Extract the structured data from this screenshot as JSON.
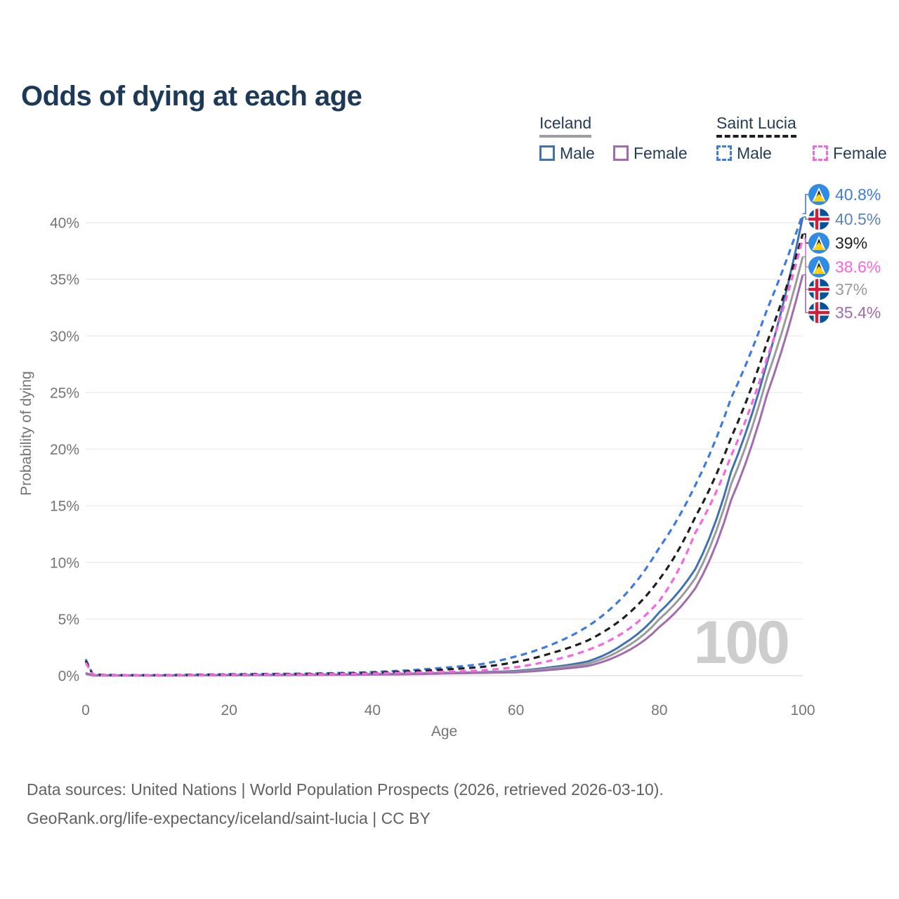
{
  "title": "Odds of dying at each age",
  "watermark": "100",
  "legend": {
    "groups": [
      {
        "name": "Iceland",
        "items": [
          {
            "label": "Male"
          },
          {
            "label": "Female"
          }
        ]
      },
      {
        "name": "Saint Lucia",
        "items": [
          {
            "label": "Male"
          },
          {
            "label": "Female"
          }
        ]
      }
    ]
  },
  "footer": {
    "line1": "Data sources: United Nations | World Population Prospects (2026, retrieved 2026-03-10).",
    "line2": "GeoRank.org/life-expectancy/iceland/saint-lucia | CC BY"
  },
  "colors": {
    "title_text": "#1c3a57",
    "axis_text": "#757575",
    "gridline": "#eaeaea",
    "zero_line": "#dcdcdc",
    "watermark": "#cdcdcd",
    "iceland_combined": "#9b9b9b",
    "saint_lucia_combined": "#1f1f1f",
    "iceland_male": "#3f72ae",
    "iceland_female": "#a26bad",
    "saint_lucia_male": "#3d7be0",
    "saint_lucia_female": "#f666de"
  },
  "chart_data": {
    "type": "line",
    "title": "Odds of dying at each age",
    "xlabel": "Age",
    "ylabel": "Probability of dying",
    "xlim": [
      0,
      100
    ],
    "ylim": [
      0,
      42
    ],
    "grid": "horizontal",
    "x_ticks": [
      0,
      20,
      40,
      60,
      80,
      100
    ],
    "x_tick_labels": [
      "0",
      "20",
      "40",
      "60",
      "80",
      "100"
    ],
    "y_ticks": [
      0,
      5,
      10,
      15,
      20,
      25,
      30,
      35,
      40
    ],
    "y_tick_labels": [
      "0%",
      "5%",
      "10%",
      "15%",
      "20%",
      "25%",
      "30%",
      "35%",
      "40%"
    ],
    "unit": "percent",
    "anchor_ages": [
      0,
      1,
      5,
      10,
      15,
      20,
      25,
      30,
      35,
      40,
      45,
      50,
      55,
      60,
      65,
      70,
      75,
      80,
      85,
      90,
      95,
      100
    ],
    "series": [
      {
        "id": "is_male",
        "name": "Iceland Male",
        "country": "Iceland",
        "sex": "male",
        "style": "solid",
        "color": "#3f72ae",
        "label_color": "#5b84b8",
        "flag": "iceland",
        "end_label": "40.5%",
        "end_value": 40.5,
        "values": [
          0.23,
          0.03,
          0.02,
          0.02,
          0.04,
          0.055,
          0.065,
          0.075,
          0.095,
          0.13,
          0.18,
          0.25,
          0.3,
          0.42,
          0.75,
          1.25,
          2.8,
          5.6,
          9.4,
          18.0,
          27.6,
          40.5
        ]
      },
      {
        "id": "is_both",
        "name": "Iceland (both sexes)",
        "country": "Iceland",
        "sex": "combined",
        "style": "solid",
        "color": "#9b9b9b",
        "label_color": "#9b9b9b",
        "flag": "iceland",
        "end_label": "37%",
        "end_value": 37.0,
        "values": [
          0.2,
          0.025,
          0.015,
          0.015,
          0.03,
          0.045,
          0.055,
          0.065,
          0.08,
          0.11,
          0.155,
          0.22,
          0.27,
          0.36,
          0.65,
          1.05,
          2.4,
          5.0,
          8.6,
          16.9,
          26.3,
          37.0
        ]
      },
      {
        "id": "is_female",
        "name": "Iceland Female",
        "country": "Iceland",
        "sex": "female",
        "style": "solid",
        "color": "#a26bad",
        "label_color": "#a26bad",
        "flag": "iceland",
        "end_label": "35.4%",
        "end_value": 35.4,
        "values": [
          0.17,
          0.02,
          0.012,
          0.012,
          0.025,
          0.035,
          0.045,
          0.055,
          0.07,
          0.09,
          0.13,
          0.19,
          0.24,
          0.3,
          0.52,
          0.85,
          2.0,
          4.3,
          7.7,
          15.5,
          24.8,
          35.4
        ]
      },
      {
        "id": "sl_male",
        "name": "Saint Lucia Male",
        "country": "Saint Lucia",
        "sex": "male",
        "style": "dashed",
        "color": "#3d7be0",
        "label_color": "#3d7be0",
        "flag": "saint-lucia",
        "end_label": "40.8%",
        "end_value": 40.8,
        "values": [
          1.45,
          0.1,
          0.05,
          0.05,
          0.09,
          0.13,
          0.15,
          0.18,
          0.23,
          0.32,
          0.48,
          0.7,
          1.0,
          1.7,
          2.75,
          4.35,
          7.0,
          11.3,
          16.8,
          24.5,
          32.3,
          40.8
        ]
      },
      {
        "id": "sl_both",
        "name": "Saint Lucia (both sexes)",
        "country": "Saint Lucia",
        "sex": "combined",
        "style": "dashed",
        "color": "#1f1f1f",
        "label_color": "#1f1f1f",
        "flag": "saint-lucia",
        "end_label": "39%",
        "end_value": 39.0,
        "values": [
          1.3,
          0.09,
          0.04,
          0.04,
          0.07,
          0.1,
          0.12,
          0.14,
          0.18,
          0.25,
          0.37,
          0.54,
          0.75,
          1.2,
          2.0,
          3.1,
          5.1,
          8.5,
          14.0,
          21.0,
          29.4,
          39.0
        ]
      },
      {
        "id": "sl_female",
        "name": "Saint Lucia Female",
        "country": "Saint Lucia",
        "sex": "female",
        "style": "dashed",
        "color": "#f666de",
        "label_color": "#f666de",
        "flag": "saint-lucia",
        "end_label": "38.6%",
        "end_value": 38.6,
        "values": [
          1.15,
          0.08,
          0.035,
          0.035,
          0.055,
          0.075,
          0.09,
          0.11,
          0.14,
          0.19,
          0.27,
          0.33,
          0.46,
          0.75,
          1.35,
          2.25,
          3.8,
          6.6,
          12.6,
          19.4,
          28.0,
          38.6
        ]
      }
    ],
    "end_label_order": [
      3,
      0,
      4,
      5,
      1,
      2
    ],
    "legend_position": "top-right"
  }
}
